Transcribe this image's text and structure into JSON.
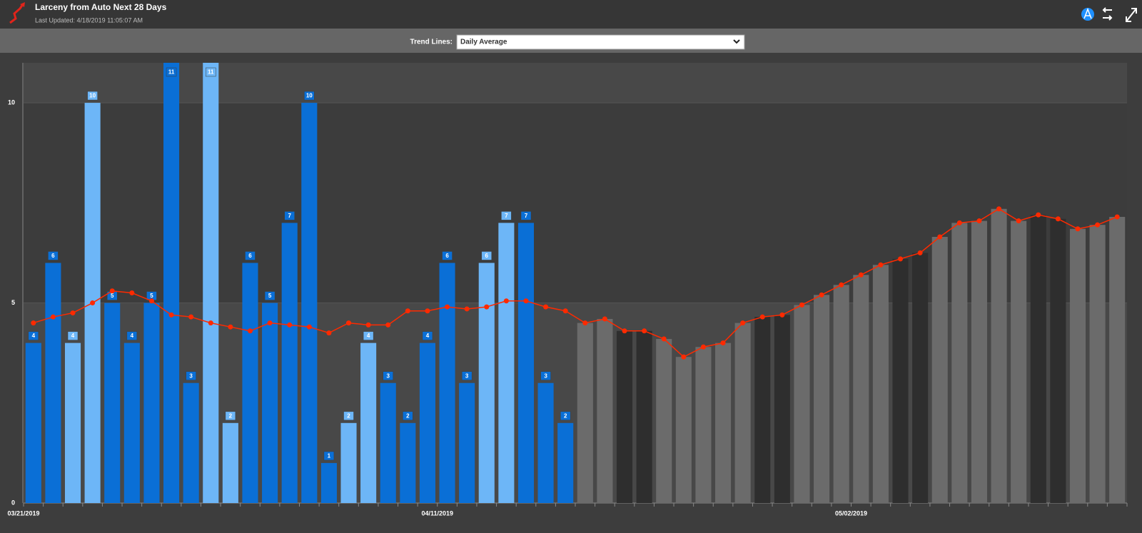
{
  "header": {
    "title": "Larceny from Auto Next 28 Days",
    "last_updated": "Last Updated: 4/18/2019 11:05:07 AM"
  },
  "toolbar": {
    "label": "Trend Lines:",
    "selected": "Daily Average"
  },
  "chart_data": {
    "type": "bar",
    "categories": [
      "03/21/2019",
      null,
      null,
      null,
      null,
      null,
      null,
      null,
      null,
      null,
      null,
      null,
      null,
      null,
      null,
      null,
      null,
      null,
      null,
      null,
      null,
      "04/11/2019",
      null,
      null,
      null,
      null,
      null,
      null,
      null,
      null,
      null,
      null,
      null,
      null,
      null,
      null,
      null,
      null,
      null,
      null,
      null,
      null,
      "05/02/2019",
      null,
      null,
      null,
      null,
      null,
      null,
      null,
      null,
      null,
      null,
      null,
      null,
      null
    ],
    "series": [
      {
        "type": "bar",
        "values": [
          4,
          6,
          4,
          10,
          5,
          4,
          5,
          11,
          3,
          11,
          2,
          6,
          5,
          7,
          10,
          1,
          2,
          4,
          3,
          2,
          4,
          6,
          3,
          6,
          7,
          7,
          3,
          2,
          null,
          null,
          null,
          null,
          null,
          null,
          null,
          null,
          null,
          null,
          null,
          null,
          null,
          null,
          null,
          null,
          null,
          null,
          null,
          null,
          null,
          null,
          null,
          null,
          null,
          null,
          null,
          null
        ],
        "colors": [
          "#0a6fd6",
          "#0a6fd6",
          "#6db6f7",
          "#6db6f7",
          "#0a6fd6",
          "#0a6fd6",
          "#0a6fd6",
          "#0a6fd6",
          "#0a6fd6",
          "#6db6f7",
          "#6db6f7",
          "#0a6fd6",
          "#0a6fd6",
          "#0a6fd6",
          "#0a6fd6",
          "#0a6fd6",
          "#6db6f7",
          "#6db6f7",
          "#0a6fd6",
          "#0a6fd6",
          "#0a6fd6",
          "#0a6fd6",
          "#0a6fd6",
          "#6db6f7",
          "#6db6f7",
          "#0a6fd6",
          "#0a6fd6",
          "#0a6fd6",
          null,
          null,
          null,
          null,
          null,
          null,
          null,
          null,
          null,
          null,
          null,
          null,
          null,
          null,
          null,
          null,
          null,
          null,
          null,
          null,
          null,
          null,
          null,
          null,
          null,
          null,
          null,
          null
        ],
        "data_labels": true
      },
      {
        "type": "bar",
        "values": [
          null,
          null,
          null,
          null,
          null,
          null,
          null,
          null,
          null,
          null,
          null,
          null,
          null,
          null,
          null,
          null,
          null,
          null,
          null,
          null,
          null,
          null,
          null,
          null,
          null,
          null,
          null,
          null,
          4.5,
          4.6,
          4.3,
          4.3,
          4.1,
          3.65,
          3.9,
          4.0,
          4.5,
          4.65,
          4.7,
          4.95,
          5.2,
          5.45,
          5.7,
          5.95,
          6.1,
          6.25,
          6.65,
          7.0,
          7.05,
          7.35,
          7.05,
          7.2,
          7.1,
          6.85,
          6.95,
          7.15
        ],
        "colors": [
          null,
          null,
          null,
          null,
          null,
          null,
          null,
          null,
          null,
          null,
          null,
          null,
          null,
          null,
          null,
          null,
          null,
          null,
          null,
          null,
          null,
          null,
          null,
          null,
          null,
          null,
          null,
          null,
          "#6b6b6b",
          "#6b6b6b",
          "#2e2e2e",
          "#2e2e2e",
          "#6b6b6b",
          "#6b6b6b",
          "#6b6b6b",
          "#6b6b6b",
          "#6b6b6b",
          "#2e2e2e",
          "#2e2e2e",
          "#6b6b6b",
          "#6b6b6b",
          "#6b6b6b",
          "#6b6b6b",
          "#6b6b6b",
          "#2e2e2e",
          "#2e2e2e",
          "#6b6b6b",
          "#6b6b6b",
          "#6b6b6b",
          "#6b6b6b",
          "#6b6b6b",
          "#2e2e2e",
          "#2e2e2e",
          "#6b6b6b",
          "#6b6b6b",
          "#6b6b6b"
        ]
      },
      {
        "type": "line",
        "color": "#ff2a00",
        "values": [
          4.5,
          4.65,
          4.75,
          5.0,
          5.3,
          5.25,
          5.05,
          4.7,
          4.65,
          4.5,
          4.4,
          4.3,
          4.5,
          4.45,
          4.4,
          4.25,
          4.5,
          4.45,
          4.45,
          4.8,
          4.8,
          4.9,
          4.85,
          4.9,
          5.05,
          5.05,
          4.9,
          4.8,
          4.5,
          4.6,
          4.3,
          4.3,
          4.1,
          3.65,
          3.9,
          4.0,
          4.5,
          4.65,
          4.7,
          4.95,
          5.2,
          5.45,
          5.7,
          5.95,
          6.1,
          6.25,
          6.65,
          7.0,
          7.05,
          7.35,
          7.05,
          7.2,
          7.1,
          6.85,
          6.95,
          7.15
        ]
      }
    ],
    "ylim": [
      0,
      11
    ],
    "yticks": [
      0,
      5,
      10
    ],
    "grid": true,
    "band_colors": [
      "#484848",
      "#3c3c3c"
    ]
  }
}
